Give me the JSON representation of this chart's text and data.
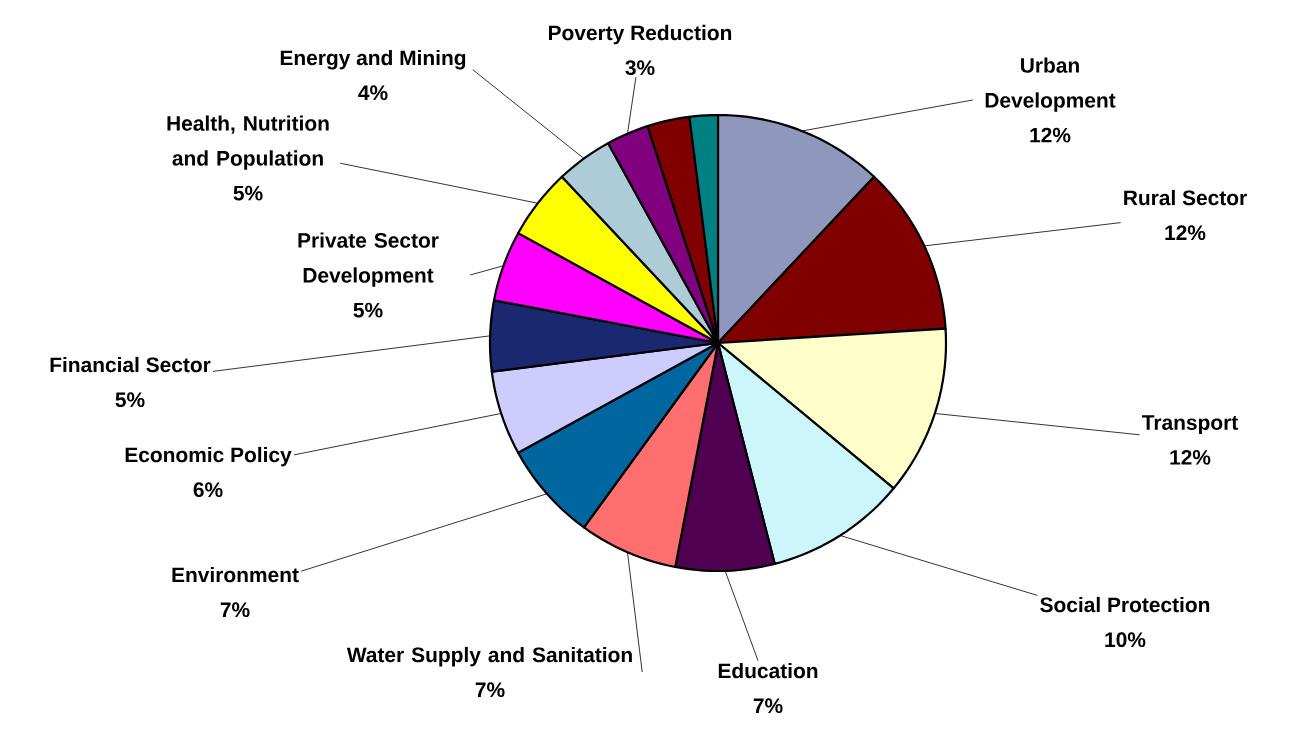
{
  "chart_data": {
    "type": "pie",
    "categories": [
      "Urban Development",
      "Rural Sector",
      "Transport",
      "Social Protection",
      "Education",
      "Water Supply and Sanitation",
      "Environment",
      "Economic Policy",
      "Financial Sector",
      "Private Sector Development",
      "Health, Nutrition and Population",
      "Energy and Mining",
      "Poverty Reduction",
      null,
      null
    ],
    "values": [
      12,
      12,
      12,
      10,
      7,
      7,
      7,
      6,
      5,
      5,
      5,
      4,
      3,
      3,
      2
    ],
    "value_labels": [
      "12%",
      "12%",
      "12%",
      "10%",
      "7%",
      "7%",
      "7%",
      "6%",
      "5%",
      "5%",
      "5%",
      "4%",
      "3%",
      null,
      null
    ],
    "colors": [
      "#9097bc",
      "#800000",
      "#ffffcc",
      "#ccf5fc",
      "#500050",
      "#ff6f6f",
      "#0066a0",
      "#ccccff",
      "#1a2870",
      "#ff00ff",
      "#ffff00",
      "#aecbd8",
      "#800080",
      "#800000",
      "#008080"
    ]
  }
}
